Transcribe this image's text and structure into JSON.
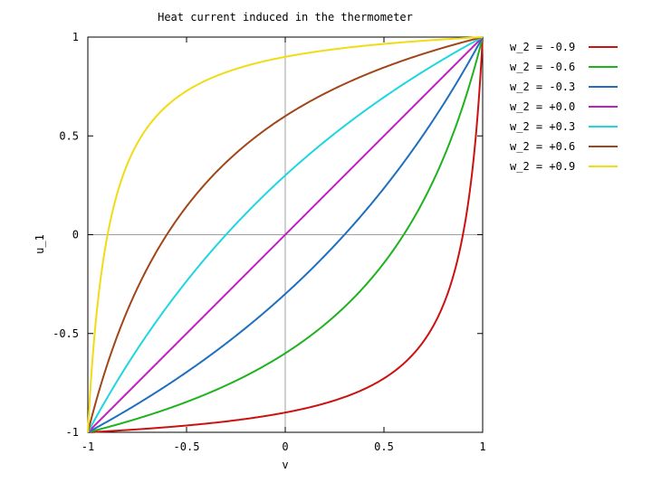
{
  "chart_data": {
    "type": "line",
    "title": "Heat current induced in the thermometer",
    "xlabel": "v",
    "ylabel": "u_1",
    "xlim": [
      -1,
      1
    ],
    "ylim": [
      -1,
      1
    ],
    "x_ticks": [
      -1,
      -0.5,
      0,
      0.5,
      1
    ],
    "y_ticks": [
      -1,
      -0.5,
      0,
      0.5,
      1
    ],
    "x_tick_labels": [
      "-1",
      "-0.5",
      "0",
      "0.5",
      "1"
    ],
    "y_tick_labels": [
      "-1",
      "-0.5",
      "0",
      "0.5",
      "1"
    ],
    "zero_axes": true,
    "grid": false,
    "legend_position": "outside-right",
    "series": [
      {
        "name": "w_2 = -0.9",
        "w2": -0.9,
        "color": "#cc1111"
      },
      {
        "name": "w_2 = -0.6",
        "w2": -0.6,
        "color": "#1fb21f"
      },
      {
        "name": "w_2 = -0.3",
        "w2": -0.3,
        "color": "#1f6fc0"
      },
      {
        "name": "w_2 = +0.0",
        "w2": 0.0,
        "color": "#c11fc1"
      },
      {
        "name": "w_2 = +0.3",
        "w2": 0.3,
        "color": "#1fd6e0"
      },
      {
        "name": "w_2 = +0.6",
        "w2": 0.6,
        "color": "#a0461a"
      },
      {
        "name": "w_2 = +0.9",
        "w2": 0.9,
        "color": "#f0dc14"
      }
    ],
    "curve_formula": "u_1 = (v + w_2) / (1 + v * w_2)"
  }
}
